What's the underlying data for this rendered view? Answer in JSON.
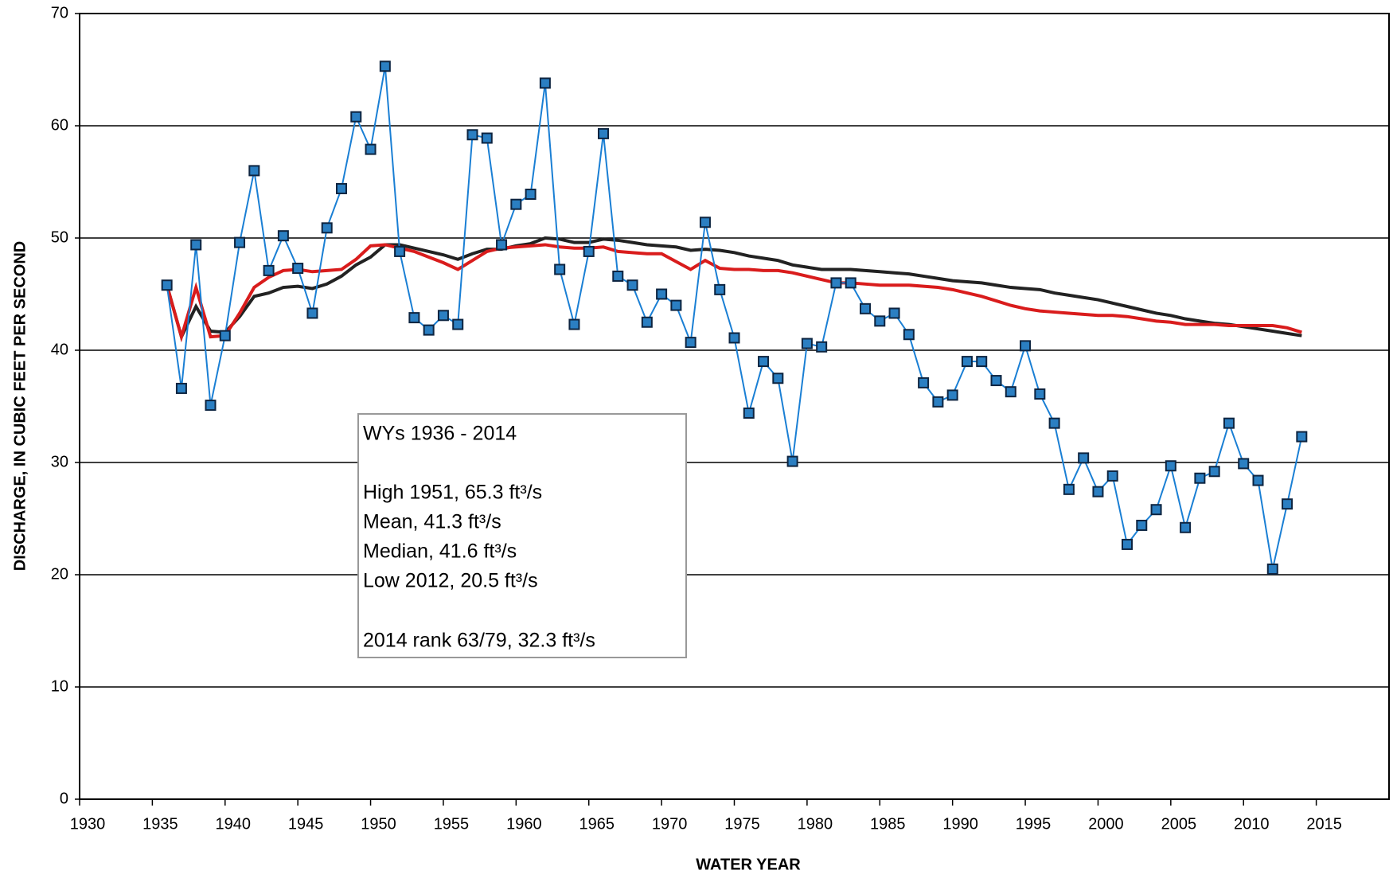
{
  "chart_data": {
    "type": "line",
    "x_label": "WATER YEAR",
    "y_label": "DISCHARGE, IN CUBIC FEET PER SECOND",
    "x": [
      1936,
      1937,
      1938,
      1939,
      1940,
      1941,
      1942,
      1943,
      1944,
      1945,
      1946,
      1947,
      1948,
      1949,
      1950,
      1951,
      1952,
      1953,
      1954,
      1955,
      1956,
      1957,
      1958,
      1959,
      1960,
      1961,
      1962,
      1963,
      1964,
      1965,
      1966,
      1967,
      1968,
      1969,
      1970,
      1971,
      1972,
      1973,
      1974,
      1975,
      1976,
      1977,
      1978,
      1979,
      1980,
      1981,
      1982,
      1983,
      1984,
      1985,
      1986,
      1987,
      1988,
      1989,
      1990,
      1991,
      1992,
      1993,
      1994,
      1995,
      1996,
      1997,
      1998,
      1999,
      2000,
      2001,
      2002,
      2003,
      2004,
      2005,
      2006,
      2007,
      2008,
      2009,
      2010,
      2011,
      2012,
      2013,
      2014
    ],
    "series": [
      {
        "color": "#1a7fd4",
        "marker_color": "#2b7fc2",
        "markers": true,
        "values": [
          45.8,
          36.6,
          49.4,
          35.1,
          41.3,
          49.6,
          56.0,
          47.1,
          50.2,
          47.3,
          43.3,
          50.9,
          54.4,
          60.8,
          57.9,
          65.3,
          48.8,
          42.9,
          41.8,
          43.1,
          42.3,
          59.2,
          58.9,
          49.4,
          53.0,
          53.9,
          63.8,
          47.2,
          42.3,
          48.8,
          59.3,
          46.6,
          45.8,
          42.5,
          45.0,
          44.0,
          40.7,
          51.4,
          45.4,
          41.1,
          34.4,
          39.0,
          37.5,
          30.1,
          40.6,
          40.3,
          46.0,
          46.0,
          43.7,
          42.6,
          43.3,
          41.4,
          37.1,
          35.4,
          36.0,
          39.0,
          39.0,
          37.3,
          36.3,
          40.4,
          36.1,
          33.5,
          27.6,
          30.4,
          27.4,
          28.8,
          22.7,
          24.4,
          25.8,
          29.7,
          24.2,
          28.6,
          29.2,
          33.5,
          29.9,
          28.4,
          20.5,
          26.3,
          32.3
        ]
      },
      {
        "color": "#222222",
        "markers": false,
        "values": [
          45.8,
          41.2,
          43.9,
          41.7,
          41.6,
          43.0,
          44.8,
          45.1,
          45.6,
          45.7,
          45.5,
          45.9,
          46.6,
          47.6,
          48.3,
          49.4,
          49.4,
          49.1,
          48.8,
          48.5,
          48.1,
          48.6,
          49.0,
          49.0,
          49.3,
          49.5,
          50.0,
          49.9,
          49.6,
          49.6,
          49.9,
          49.8,
          49.6,
          49.4,
          49.3,
          49.2,
          48.9,
          49.0,
          48.9,
          48.7,
          48.4,
          48.2,
          48.0,
          47.6,
          47.4,
          47.2,
          47.2,
          47.2,
          47.1,
          47.0,
          46.9,
          46.8,
          46.6,
          46.4,
          46.2,
          46.1,
          46.0,
          45.8,
          45.6,
          45.5,
          45.4,
          45.1,
          44.9,
          44.7,
          44.5,
          44.2,
          43.9,
          43.6,
          43.3,
          43.1,
          42.8,
          42.6,
          42.4,
          42.3,
          42.1,
          41.9,
          41.7,
          41.5,
          41.3
        ]
      },
      {
        "color": "#d91c1c",
        "markers": false,
        "values": [
          45.8,
          41.2,
          45.6,
          41.2,
          41.3,
          43.3,
          45.6,
          46.5,
          47.1,
          47.2,
          47.0,
          47.1,
          47.2,
          48.1,
          49.3,
          49.4,
          49.1,
          48.8,
          48.3,
          47.8,
          47.2,
          48.0,
          48.8,
          49.1,
          49.2,
          49.3,
          49.4,
          49.2,
          49.1,
          49.1,
          49.2,
          48.8,
          48.7,
          48.6,
          48.6,
          47.9,
          47.2,
          48.0,
          47.3,
          47.2,
          47.2,
          47.1,
          47.1,
          46.9,
          46.6,
          46.3,
          46.0,
          46.0,
          45.9,
          45.8,
          45.8,
          45.8,
          45.7,
          45.6,
          45.4,
          45.1,
          44.8,
          44.4,
          44.0,
          43.7,
          43.5,
          43.4,
          43.3,
          43.2,
          43.1,
          43.1,
          43.0,
          42.8,
          42.6,
          42.5,
          42.3,
          42.3,
          42.3,
          42.2,
          42.2,
          42.2,
          42.2,
          42.0,
          41.6
        ]
      }
    ],
    "xlim": [
      1930,
      2020
    ],
    "xticks": [
      1930,
      1935,
      1940,
      1945,
      1950,
      1955,
      1960,
      1965,
      1970,
      1975,
      1980,
      1985,
      1990,
      1995,
      2000,
      2005,
      2010,
      2015
    ],
    "ylim": [
      0,
      70
    ],
    "yticks": [
      0,
      10,
      20,
      30,
      40,
      50,
      60,
      70
    ],
    "grid": true,
    "annotations": [
      "WYs 1936 - 2014",
      "High 1951, 65.3 ft³/s",
      "Mean, 41.3 ft³/s",
      "Median, 41.6 ft³/s",
      "Low 2012, 20.5 ft³/s",
      "2014 rank 63/79, 32.3 ft³/s"
    ]
  }
}
